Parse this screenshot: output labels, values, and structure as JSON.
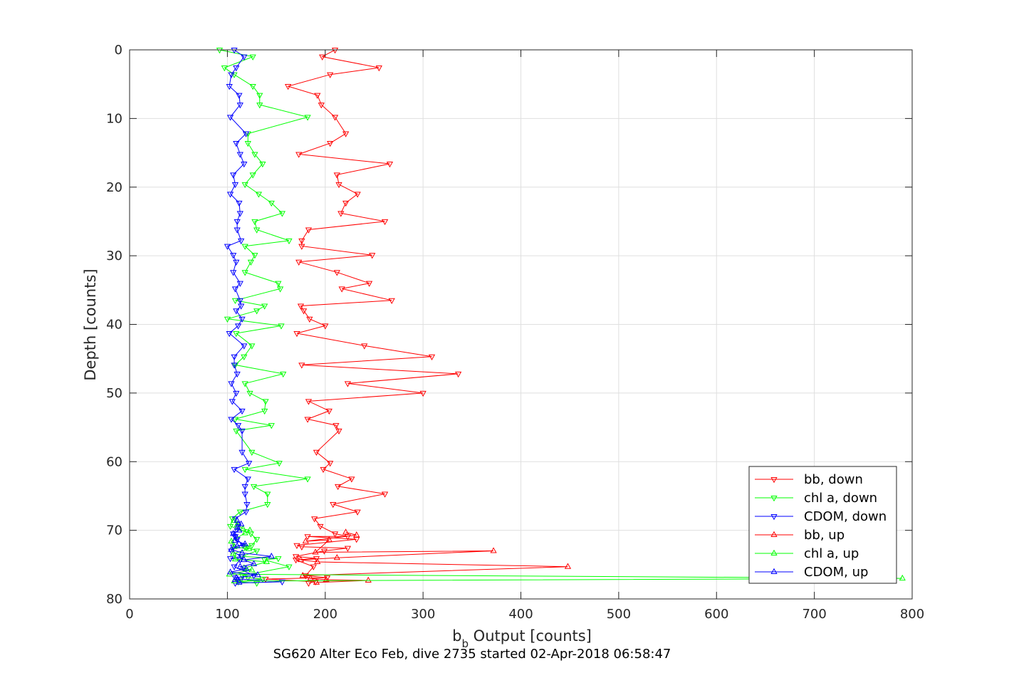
{
  "chart_data": {
    "type": "line",
    "xlabel": "b_b Output [counts]",
    "xlabel_main": "b",
    "xlabel_sub": "b",
    "xlabel_rest": " Output [counts]",
    "ylabel": "Depth [counts]",
    "caption": "SG620 Alter Eco Feb, dive 2735 started 02-Apr-2018 06:58:47",
    "xlim": [
      0,
      800
    ],
    "ylim": [
      0,
      80
    ],
    "y_reversed": true,
    "grid": true,
    "legend_position": "bottom-right",
    "xticks": [
      "0",
      "100",
      "200",
      "300",
      "400",
      "500",
      "600",
      "700",
      "800"
    ],
    "yticks": [
      "0",
      "10",
      "20",
      "30",
      "40",
      "50",
      "60",
      "70",
      "80"
    ],
    "series": [
      {
        "name": "bb, down",
        "color": "#ff0000",
        "marker": "triangle-down",
        "points": [
          [
            210,
            0
          ],
          [
            197,
            1
          ],
          [
            255,
            2.6
          ],
          [
            205,
            3.6
          ],
          [
            162,
            5.3
          ],
          [
            192,
            6.6
          ],
          [
            196,
            8
          ],
          [
            210,
            9.8
          ],
          [
            221,
            12.2
          ],
          [
            205,
            13.6
          ],
          [
            173,
            15.2
          ],
          [
            266,
            16.6
          ],
          [
            212,
            18.2
          ],
          [
            214,
            19.6
          ],
          [
            233,
            21
          ],
          [
            221,
            22.3
          ],
          [
            216,
            23.8
          ],
          [
            261,
            25
          ],
          [
            183,
            26.2
          ],
          [
            176,
            27.8
          ],
          [
            176,
            28.6
          ],
          [
            248,
            29.9
          ],
          [
            173,
            30.9
          ],
          [
            212,
            32.4
          ],
          [
            245,
            34
          ],
          [
            217,
            34.8
          ],
          [
            268,
            36.5
          ],
          [
            175,
            37.3
          ],
          [
            178,
            38
          ],
          [
            184,
            39.2
          ],
          [
            200,
            40.2
          ],
          [
            171,
            41.3
          ],
          [
            240,
            43.1
          ],
          [
            309,
            44.7
          ],
          [
            176,
            45.9
          ],
          [
            336,
            47.2
          ],
          [
            223,
            48.6
          ],
          [
            300,
            50
          ],
          [
            183,
            51.2
          ],
          [
            204,
            52.6
          ],
          [
            182,
            53.8
          ],
          [
            211,
            54.7
          ],
          [
            214,
            55.5
          ],
          [
            191,
            58.6
          ],
          [
            205,
            60.2
          ],
          [
            198,
            61.1
          ],
          [
            227,
            62.5
          ],
          [
            213,
            63.6
          ],
          [
            261,
            64.7
          ],
          [
            208,
            66.2
          ],
          [
            233,
            67.3
          ],
          [
            189,
            68.3
          ],
          [
            195,
            69.4
          ],
          [
            210,
            70.5
          ],
          [
            223,
            70.9
          ],
          [
            182,
            70.9
          ],
          [
            232,
            71.3
          ],
          [
            171,
            72.2
          ],
          [
            176,
            72.4
          ],
          [
            223,
            72.6
          ],
          [
            199,
            73
          ],
          [
            170,
            73.8
          ],
          [
            191,
            74.1
          ],
          [
            170,
            74.3
          ],
          [
            188,
            75.3
          ],
          [
            180,
            76.6
          ],
          [
            202,
            76.9
          ],
          [
            139,
            77.1
          ],
          [
            190,
            77.5
          ],
          [
            183,
            77.7
          ]
        ]
      },
      {
        "name": "chl a, down",
        "color": "#00ff00",
        "marker": "triangle-down",
        "points": [
          [
            92,
            0
          ],
          [
            126,
            1
          ],
          [
            97,
            2.6
          ],
          [
            107,
            3.6
          ],
          [
            126,
            5.3
          ],
          [
            133,
            6.6
          ],
          [
            133,
            8
          ],
          [
            182,
            9.8
          ],
          [
            121,
            12.2
          ],
          [
            121,
            13.6
          ],
          [
            128,
            15.2
          ],
          [
            136,
            16.6
          ],
          [
            126,
            18.2
          ],
          [
            118,
            19.6
          ],
          [
            132,
            21
          ],
          [
            145,
            22.3
          ],
          [
            156,
            23.8
          ],
          [
            128,
            25
          ],
          [
            130,
            26.2
          ],
          [
            163,
            27.8
          ],
          [
            118,
            28.6
          ],
          [
            128,
            29.9
          ],
          [
            124,
            30.9
          ],
          [
            118,
            32.4
          ],
          [
            152,
            34
          ],
          [
            154,
            34.8
          ],
          [
            108,
            36.5
          ],
          [
            138,
            37.3
          ],
          [
            130,
            38
          ],
          [
            100,
            39.2
          ],
          [
            155,
            40.2
          ],
          [
            109,
            41.3
          ],
          [
            125,
            43.1
          ],
          [
            117,
            44.7
          ],
          [
            108,
            45.9
          ],
          [
            157,
            47.2
          ],
          [
            118,
            48.6
          ],
          [
            123,
            50
          ],
          [
            139,
            51.2
          ],
          [
            138,
            52.6
          ],
          [
            108,
            53.8
          ],
          [
            145,
            54.7
          ],
          [
            109,
            55.5
          ],
          [
            125,
            58.6
          ],
          [
            153,
            60.2
          ],
          [
            118,
            61.1
          ],
          [
            182,
            62.5
          ],
          [
            127,
            63.6
          ],
          [
            141,
            64.7
          ],
          [
            141,
            66.2
          ],
          [
            113,
            67.3
          ],
          [
            105,
            68.3
          ],
          [
            103,
            69.4
          ],
          [
            124,
            70.5
          ],
          [
            130,
            71.3
          ],
          [
            125,
            72.2
          ],
          [
            118,
            72.4
          ],
          [
            130,
            73
          ],
          [
            115,
            73.8
          ],
          [
            152,
            74.1
          ],
          [
            138,
            74.3
          ],
          [
            163,
            75.3
          ],
          [
            115,
            76.6
          ],
          [
            121,
            76.9
          ],
          [
            136,
            77.1
          ],
          [
            111,
            77.5
          ],
          [
            130,
            77.7
          ]
        ]
      },
      {
        "name": "CDOM, down",
        "color": "#0000ff",
        "marker": "triangle-down",
        "points": [
          [
            107,
            0
          ],
          [
            117,
            1
          ],
          [
            109,
            2.6
          ],
          [
            104,
            3.6
          ],
          [
            102,
            5.3
          ],
          [
            112,
            6.6
          ],
          [
            113,
            8
          ],
          [
            103,
            9.8
          ],
          [
            119,
            12.2
          ],
          [
            109,
            13.6
          ],
          [
            113,
            15.2
          ],
          [
            117,
            16.6
          ],
          [
            106,
            18.2
          ],
          [
            108,
            19.6
          ],
          [
            103,
            21
          ],
          [
            112,
            22.3
          ],
          [
            113,
            23.8
          ],
          [
            110,
            25
          ],
          [
            110,
            26.2
          ],
          [
            114,
            27.8
          ],
          [
            100,
            28.6
          ],
          [
            106,
            29.9
          ],
          [
            109,
            30.9
          ],
          [
            106,
            32.4
          ],
          [
            113,
            34
          ],
          [
            108,
            34.8
          ],
          [
            113,
            36.5
          ],
          [
            114,
            37.3
          ],
          [
            109,
            38
          ],
          [
            115,
            39.2
          ],
          [
            111,
            40.2
          ],
          [
            102,
            41.3
          ],
          [
            117,
            43.1
          ],
          [
            107,
            44.7
          ],
          [
            107,
            45.9
          ],
          [
            110,
            47.2
          ],
          [
            104,
            48.6
          ],
          [
            109,
            50
          ],
          [
            105,
            51.2
          ],
          [
            115,
            52.6
          ],
          [
            104,
            53.8
          ],
          [
            111,
            54.7
          ],
          [
            115,
            55.5
          ],
          [
            115,
            58.6
          ],
          [
            122,
            60.2
          ],
          [
            107,
            61.1
          ],
          [
            121,
            62.5
          ],
          [
            118,
            63.6
          ],
          [
            118,
            64.7
          ],
          [
            120,
            66.2
          ],
          [
            119,
            67.3
          ],
          [
            108,
            68.3
          ],
          [
            111,
            69.4
          ],
          [
            106,
            70.5
          ],
          [
            108,
            70.9
          ],
          [
            110,
            71.3
          ],
          [
            116,
            72.2
          ],
          [
            106,
            72.4
          ],
          [
            104,
            73
          ],
          [
            114,
            73.8
          ],
          [
            103,
            74.1
          ],
          [
            113,
            74.3
          ],
          [
            107,
            75.3
          ],
          [
            127,
            76.6
          ],
          [
            108,
            76.9
          ],
          [
            114,
            77.1
          ],
          [
            156,
            77.5
          ],
          [
            108,
            77.7
          ]
        ]
      },
      {
        "name": "bb, up",
        "color": "#ff0000",
        "marker": "triangle-up",
        "points": [
          [
            191,
            77.6
          ],
          [
            244,
            77.3
          ],
          [
            201,
            77.2
          ],
          [
            185,
            77
          ],
          [
            177,
            76.6
          ],
          [
            448,
            75.3
          ],
          [
            192,
            74.6
          ],
          [
            175,
            74.3
          ],
          [
            212,
            74
          ],
          [
            372,
            73
          ],
          [
            190,
            73.2
          ],
          [
            204,
            71.4
          ],
          [
            180,
            71.6
          ],
          [
            232,
            70.7
          ],
          [
            221,
            70.3
          ]
        ]
      },
      {
        "name": "chl a, up",
        "color": "#00ff00",
        "marker": "triangle-up",
        "points": [
          [
            107,
            77.4
          ],
          [
            790,
            77
          ],
          [
            102,
            76.4
          ],
          [
            125,
            75.8
          ],
          [
            117,
            75.5
          ],
          [
            140,
            74.6
          ],
          [
            108,
            74.2
          ],
          [
            106,
            73.4
          ],
          [
            122,
            72.7
          ],
          [
            107,
            72.4
          ],
          [
            104,
            71.6
          ],
          [
            118,
            70.4
          ],
          [
            123,
            70
          ],
          [
            116,
            69.8
          ],
          [
            110,
            69.2
          ],
          [
            107,
            68.6
          ]
        ]
      },
      {
        "name": "CDOM, up",
        "color": "#0000ff",
        "marker": "triangle-up",
        "points": [
          [
            112,
            77.6
          ],
          [
            108,
            77.2
          ],
          [
            109,
            76.9
          ],
          [
            131,
            76.5
          ],
          [
            103,
            76.1
          ],
          [
            119,
            75.6
          ],
          [
            113,
            75.3
          ],
          [
            127,
            74.9
          ],
          [
            117,
            74.3
          ],
          [
            145,
            73.8
          ],
          [
            115,
            73.3
          ],
          [
            104,
            72.8
          ],
          [
            110,
            72.3
          ],
          [
            118,
            72
          ],
          [
            108,
            71.5
          ],
          [
            109,
            71
          ],
          [
            106,
            70.5
          ],
          [
            112,
            70
          ],
          [
            110,
            69.6
          ],
          [
            114,
            69.1
          ],
          [
            110,
            68.6
          ]
        ]
      }
    ]
  }
}
